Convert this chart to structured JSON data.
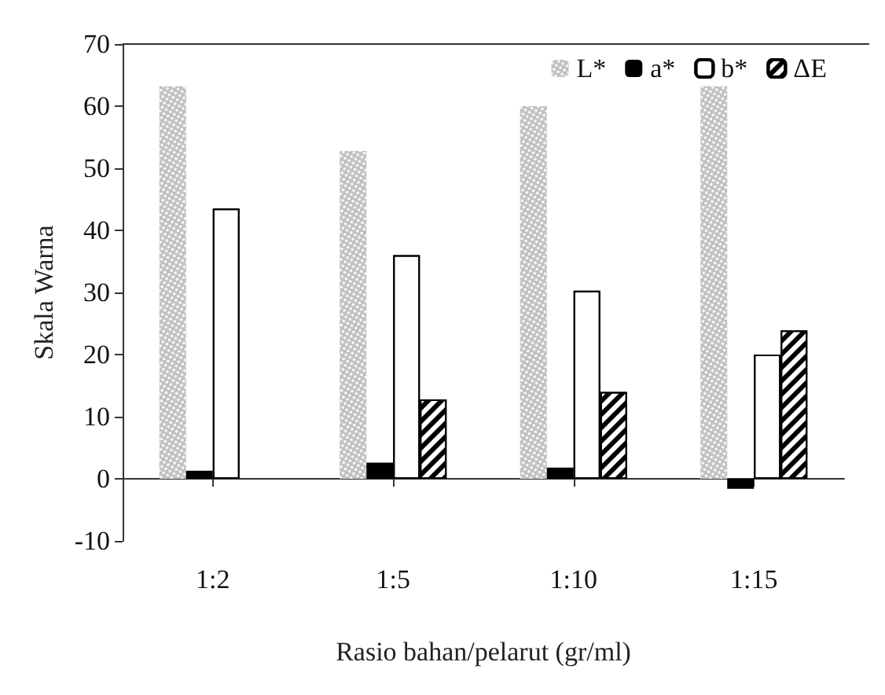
{
  "chart_data": {
    "type": "bar",
    "xlabel": "Rasio bahan/pelarut (gr/ml)",
    "ylabel": "Skala Warna",
    "categories": [
      "1:2",
      "1:5",
      "1:10",
      "1:15"
    ],
    "series": [
      {
        "name": "L*",
        "color": "#c0c0c0",
        "values": [
          63.2,
          52.8,
          60,
          63.2
        ]
      },
      {
        "name": "a*",
        "color": "#000000",
        "values": [
          1.3,
          2.6,
          1.8,
          -1.6
        ]
      },
      {
        "name": "b*",
        "color": "#ffffff",
        "values": [
          43.5,
          36,
          30.3,
          20
        ]
      },
      {
        "name": "ΔE",
        "color": "#ffffff",
        "values": [
          null,
          12.8,
          14,
          23.9
        ]
      }
    ],
    "ylim": [
      -10,
      70
    ],
    "yticks": [
      -10,
      0,
      10,
      20,
      30,
      40,
      50,
      60,
      70
    ],
    "legend": "top right"
  }
}
